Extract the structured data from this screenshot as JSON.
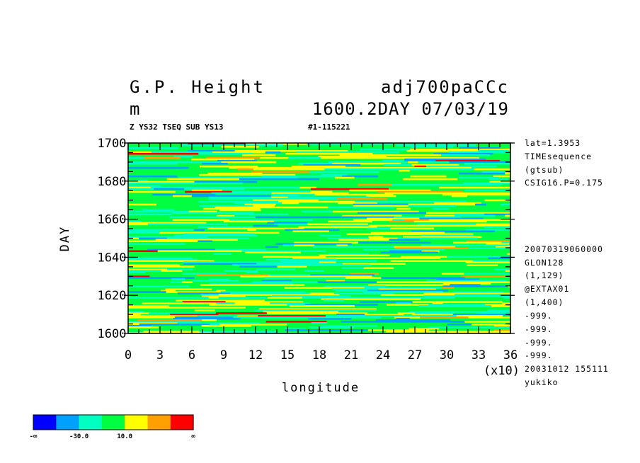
{
  "header": {
    "title_left_1": "G.P. Height",
    "title_right_1": "adj700paCCc",
    "title_left_2": "m",
    "title_right_2": "1600.2DAY 07/03/19",
    "sub_left": "Z YS32 TSEQ SUB YS13",
    "sub_right": "#1-115221"
  },
  "side_info": [
    "lat=1.3953",
    "TIMEsequence",
    "(gtsub)",
    "CSIG16.P=0.175",
    "20070319060000",
    "GLON128",
    "(1,129)",
    "@EXTAX01",
    "(1,400)",
    "-999.",
    "-999.",
    "-999.",
    "-999.",
    "20031012 155111",
    "yukiko"
  ],
  "chart_data": {
    "type": "heatmap",
    "title": "G.P. Height",
    "xlabel": "longitude",
    "ylabel": "DAY",
    "x_unit": "(x10)",
    "xlim": [
      0,
      36
    ],
    "ylim": [
      1600,
      1700
    ],
    "x_ticks": [
      "0",
      "3",
      "6",
      "9",
      "12",
      "15",
      "18",
      "21",
      "24",
      "27",
      "30",
      "33",
      "36"
    ],
    "y_ticks": [
      "1600",
      "1620",
      "1640",
      "1660",
      "1680",
      "1700"
    ],
    "colorbar": {
      "colors": [
        "#0000ff",
        "#00a0ff",
        "#00ffc0",
        "#00ff40",
        "#ffff00",
        "#ffa000",
        "#ff0000"
      ],
      "labels": [
        "-∞",
        "-30.0",
        "10.0",
        "∞"
      ]
    },
    "note": "Dense horizontally banded field dominated by green with yellow streaks, cyan/blue bands and rare orange/red spots."
  }
}
